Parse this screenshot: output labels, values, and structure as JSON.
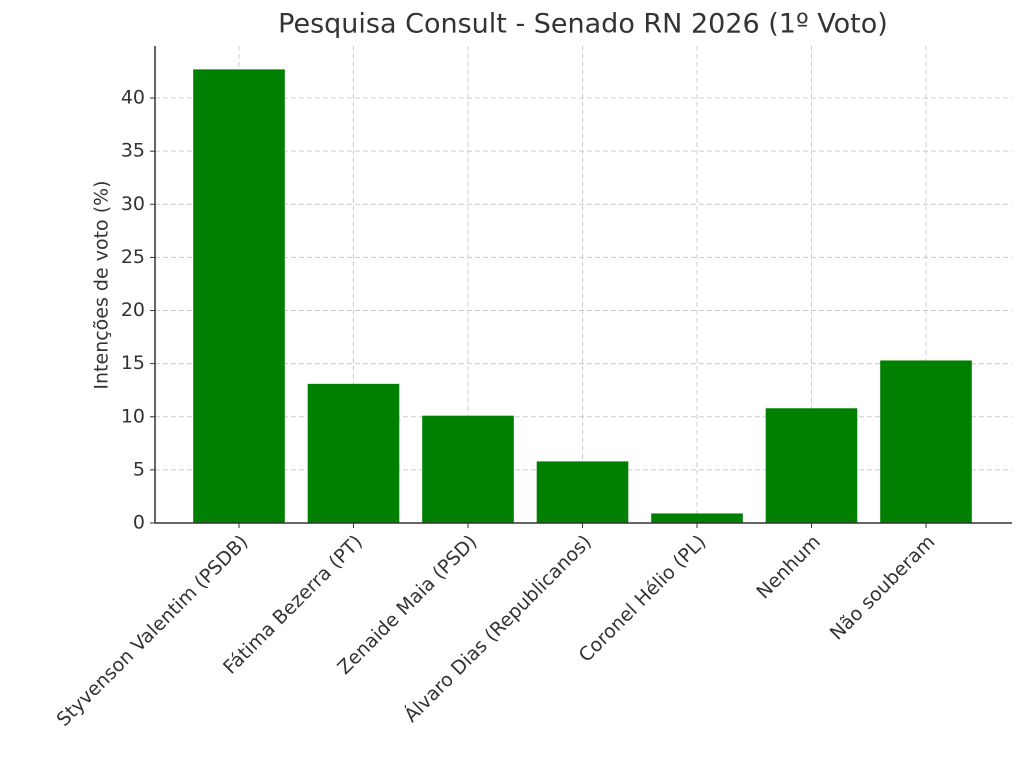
{
  "chart_data": {
    "type": "bar",
    "title": "Pesquisa Consult - Senado RN 2026 (1º Voto)",
    "y_label": "Intenções de voto (%)",
    "categories": [
      "Styvenson Valentim (PSDB)",
      "Fátima Bezerra (PT)",
      "Zenaide Maia (PSD)",
      "Álvaro Dias (Republicanos)",
      "Coronel Hélio (PL)",
      "Nenhum",
      "Não souberam"
    ],
    "values": [
      42.7,
      13.1,
      10.1,
      5.8,
      0.9,
      10.8,
      15.3
    ],
    "color": "#008000",
    "ylim": [
      0,
      44.9
    ],
    "yticks": [
      0,
      5,
      10,
      15,
      20,
      25,
      30,
      35,
      40
    ],
    "grid": true
  }
}
